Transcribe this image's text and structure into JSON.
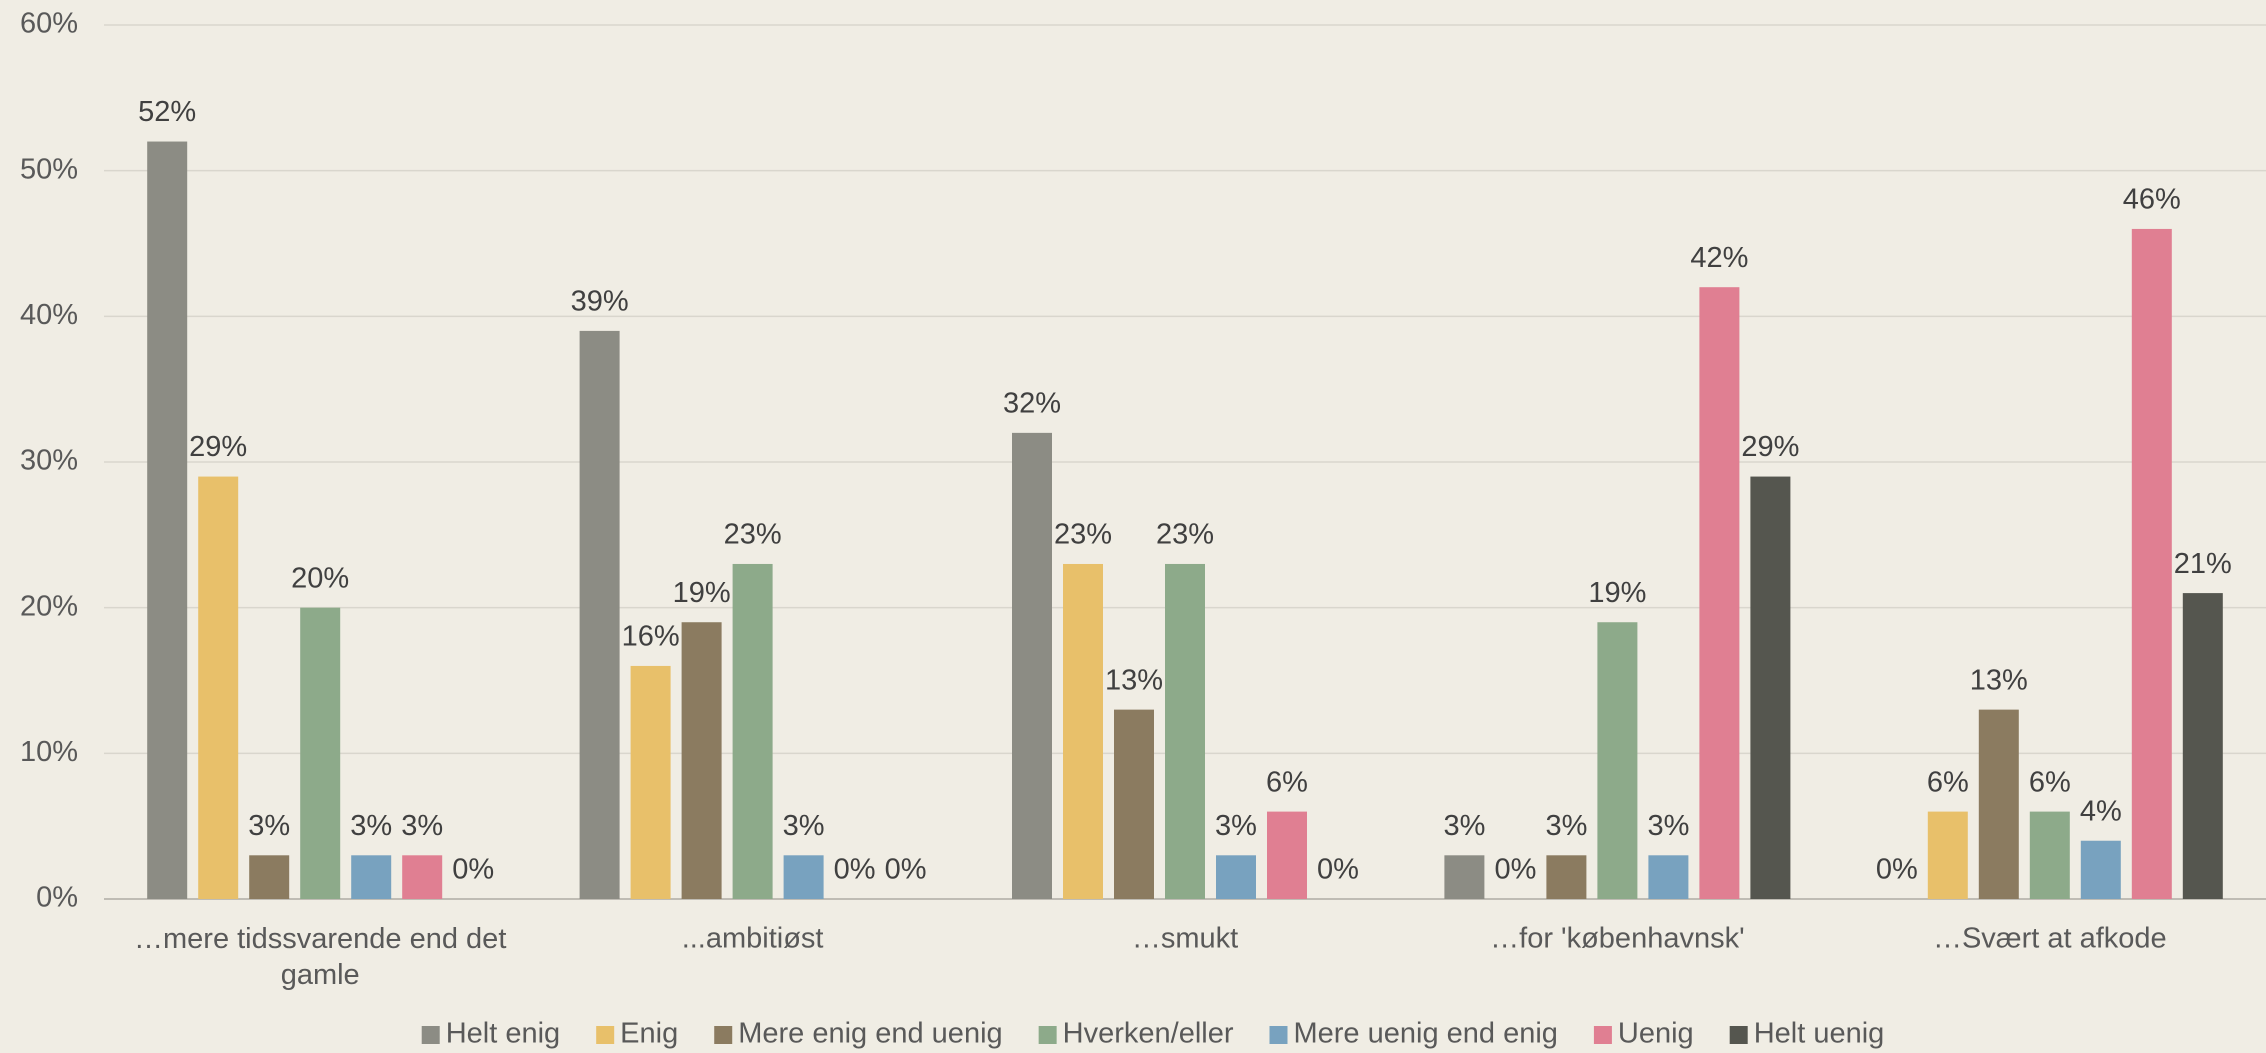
{
  "chart_data": {
    "type": "bar",
    "categories": [
      "…mere tidssvarende end det gamle",
      "...ambitiøst",
      "…smukt",
      "…for 'københavnsk'",
      "…Svært at afkode"
    ],
    "series": [
      {
        "name": "Helt enig",
        "color": "#8c8c84",
        "values": [
          52,
          39,
          32,
          3,
          0
        ],
        "value_labels": [
          "52%",
          "39%",
          "32%",
          "3%",
          "0%"
        ]
      },
      {
        "name": "Enig",
        "color": "#e8c06a",
        "values": [
          29,
          16,
          23,
          0,
          6
        ],
        "value_labels": [
          "29%",
          "16%",
          "23%",
          "0%",
          "6%"
        ]
      },
      {
        "name": "Mere enig end uenig",
        "color": "#8b7b60",
        "values": [
          3,
          19,
          13,
          3,
          13
        ],
        "value_labels": [
          "3%",
          "19%",
          "13%",
          "3%",
          "13%"
        ]
      },
      {
        "name": "Hverken/eller",
        "color": "#8daa8a",
        "values": [
          20,
          23,
          23,
          19,
          6
        ],
        "value_labels": [
          "20%",
          "23%",
          "23%",
          "19%",
          "6%"
        ]
      },
      {
        "name": "Mere uenig end enig",
        "color": "#78a2bf",
        "values": [
          3,
          3,
          3,
          3,
          4
        ],
        "value_labels": [
          "3%",
          "3%",
          "3%",
          "3%",
          "4%"
        ]
      },
      {
        "name": "Uenig",
        "color": "#e07f92",
        "values": [
          3,
          0,
          6,
          42,
          46
        ],
        "value_labels": [
          "3%",
          "0%",
          "6%",
          "42%",
          "46%"
        ]
      },
      {
        "name": "Helt uenig",
        "color": "#55564f",
        "values": [
          0,
          0,
          0,
          29,
          21
        ],
        "value_labels": [
          "0%",
          "0%",
          "0%",
          "29%",
          "21%"
        ]
      }
    ],
    "ylim": [
      0,
      60
    ],
    "yticks": [
      {
        "value": 0,
        "label": "0%"
      },
      {
        "value": 10,
        "label": "10%"
      },
      {
        "value": 20,
        "label": "20%"
      },
      {
        "value": 30,
        "label": "30%"
      },
      {
        "value": 40,
        "label": "40%"
      },
      {
        "value": 50,
        "label": "50%"
      },
      {
        "value": 60,
        "label": "60%"
      }
    ],
    "grid": true,
    "legend": "bottom"
  }
}
